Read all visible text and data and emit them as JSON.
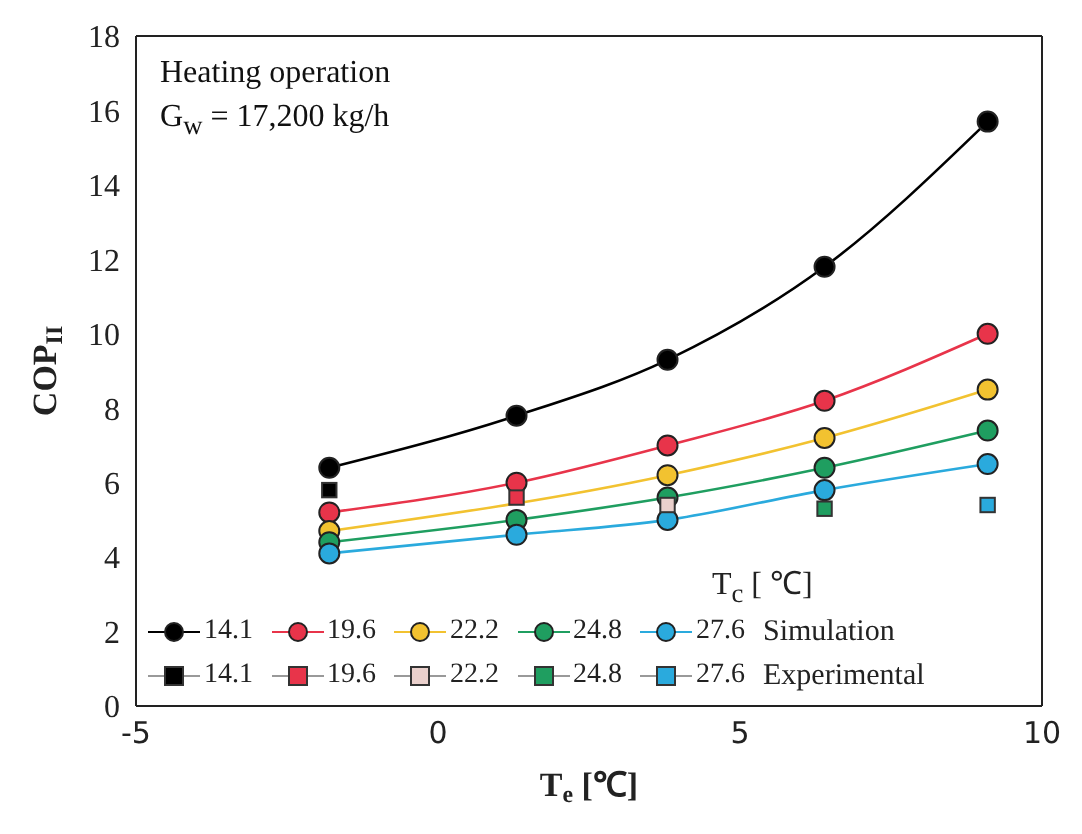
{
  "chart_data": {
    "type": "line",
    "xlabel": "T$_{e}$ [℃]",
    "ylabel": "COP$_{II}$",
    "legend_title": "T$_{c}$ [ ℃]",
    "annotations": [
      "Heating operation",
      "G$_{w}$ = 17,200 kg/h",
      "Simulation",
      "Experimental"
    ],
    "x": [
      -1.8,
      1.3,
      3.8,
      6.4,
      9.1
    ],
    "xlim": [
      -5,
      10
    ],
    "xticks": [
      -5,
      0,
      5,
      10
    ],
    "ylim": [
      0,
      18
    ],
    "yticks": [
      0,
      2,
      4,
      6,
      8,
      10,
      12,
      14,
      16,
      18
    ],
    "grid": false,
    "legend": "bottom",
    "marker": "circle",
    "line_style": "solid",
    "series": [
      {
        "name": "14.1",
        "color": "#000000",
        "values": [
          6.4,
          7.8,
          9.3,
          11.8,
          15.7
        ]
      },
      {
        "name": "19.6",
        "color": "#e8344a",
        "values": [
          5.2,
          6.0,
          7.0,
          8.2,
          10.0
        ]
      },
      {
        "name": "22.2",
        "color": "#f2c230",
        "values": [
          4.7,
          null,
          6.2,
          7.2,
          8.5
        ]
      },
      {
        "name": "24.8",
        "color": "#1f9e60",
        "values": [
          4.4,
          5.0,
          5.6,
          6.4,
          7.4
        ]
      },
      {
        "name": "27.6",
        "color": "#2aaadd",
        "values": [
          4.1,
          4.6,
          5.0,
          5.8,
          6.5
        ]
      },
      {
        "name": "14.1",
        "type": "scatter",
        "marker": "square",
        "color": "#000000",
        "x": [
          -1.8
        ],
        "values": [
          5.8
        ]
      },
      {
        "name": "19.6",
        "type": "scatter",
        "marker": "square",
        "color": "#e8344a",
        "x": [
          1.3
        ],
        "values": [
          5.6
        ]
      },
      {
        "name": "22.2",
        "type": "scatter",
        "marker": "square",
        "color": "#ead0cc",
        "x": [
          3.8
        ],
        "values": [
          5.4
        ]
      },
      {
        "name": "24.8",
        "type": "scatter",
        "marker": "square",
        "color": "#1f9e60",
        "x": [
          6.4
        ],
        "values": [
          5.3
        ]
      },
      {
        "name": "27.6",
        "type": "scatter",
        "marker": "square",
        "color": "#2aaadd",
        "x": [
          9.1
        ],
        "values": [
          5.4
        ]
      }
    ]
  }
}
